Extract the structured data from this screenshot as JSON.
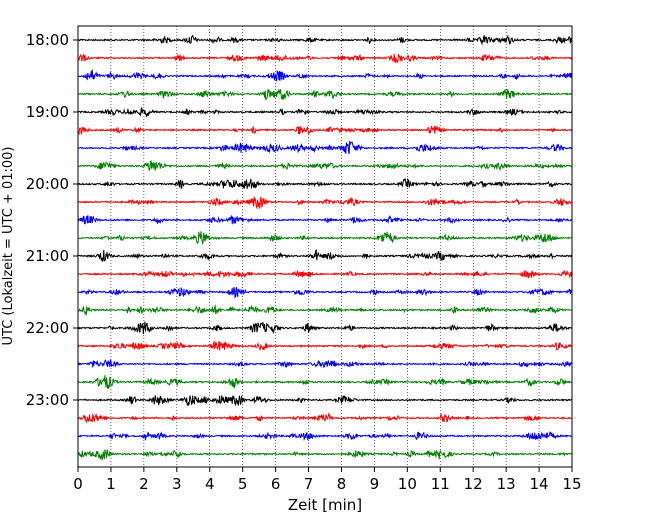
{
  "chart_data": {
    "type": "line",
    "title": "",
    "xlabel": "Zeit  [min]",
    "ylabel": "UTC (Lokalzeit = UTC + 01:00)",
    "xlim": [
      0,
      15
    ],
    "x_ticks": [
      "0",
      "1",
      "2",
      "3",
      "4",
      "5",
      "6",
      "7",
      "8",
      "9",
      "10",
      "11",
      "12",
      "13",
      "14",
      "15"
    ],
    "y_ticks": [
      "18:00",
      "19:00",
      "20:00",
      "21:00",
      "22:00",
      "23:00"
    ],
    "grid": "vertical-dotted",
    "trace_interval_min": 15,
    "trace_start": "18:00",
    "trace_count": 24,
    "trace_colors": [
      "#000000",
      "#ff0000",
      "#0000ff",
      "#008000"
    ],
    "trace_amplitude_note": ""
  }
}
